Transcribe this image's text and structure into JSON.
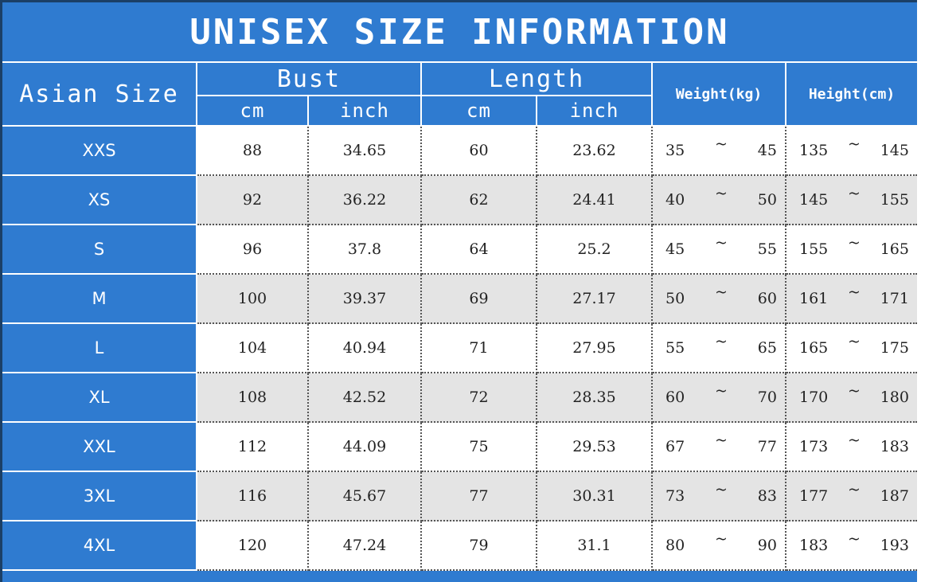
{
  "title": "UNISEX SIZE INFORMATION",
  "header": {
    "size": "Asian Size",
    "bust": "Bust",
    "length": "Length",
    "weight": "Weight(kg)",
    "height": "Height(cm)",
    "units": [
      "cm",
      "inch",
      "cm",
      "inch"
    ]
  },
  "separator": "~",
  "table": {
    "rows": [
      [
        "XXS",
        "88",
        "34.65",
        "60",
        "23.62",
        "35",
        "45",
        "135",
        "145"
      ],
      [
        "XS",
        "92",
        "36.22",
        "62",
        "24.41",
        "40",
        "50",
        "145",
        "155"
      ],
      [
        "S",
        "96",
        "37.8",
        "64",
        "25.2",
        "45",
        "55",
        "155",
        "165"
      ],
      [
        "M",
        "100",
        "39.37",
        "69",
        "27.17",
        "50",
        "60",
        "161",
        "171"
      ],
      [
        "L",
        "104",
        "40.94",
        "71",
        "27.95",
        "55",
        "65",
        "165",
        "175"
      ],
      [
        "XL",
        "108",
        "42.52",
        "72",
        "28.35",
        "60",
        "70",
        "170",
        "180"
      ],
      [
        "XXL",
        "112",
        "44.09",
        "75",
        "29.53",
        "67",
        "77",
        "173",
        "183"
      ],
      [
        "3XL",
        "116",
        "45.67",
        "77",
        "30.31",
        "73",
        "83",
        "177",
        "187"
      ],
      [
        "4XL",
        "120",
        "47.24",
        "79",
        "31.1",
        "80",
        "90",
        "183",
        "193"
      ]
    ]
  }
}
